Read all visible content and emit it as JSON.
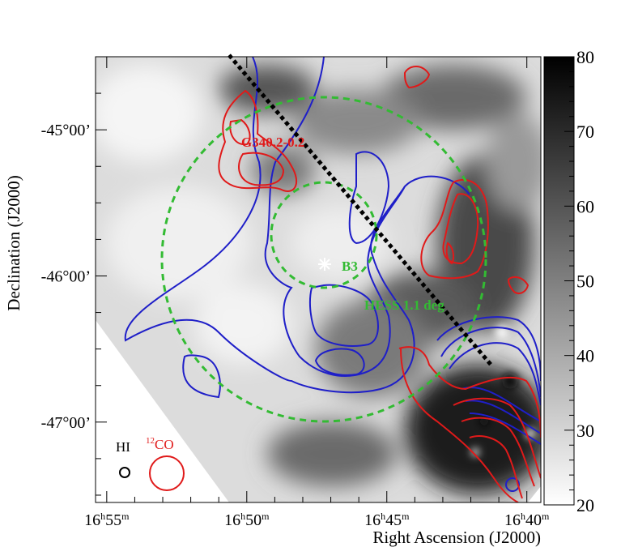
{
  "chart_data": {
    "type": "heatmap",
    "title": "",
    "xlabel": "Right Ascension (J2000)",
    "ylabel": "Declination (J2000)",
    "x_ticks": [
      {
        "h": "16",
        "m": "55",
        "ra_min": 0
      },
      {
        "h": "16",
        "m": "50",
        "ra_min": 5
      },
      {
        "h": "16",
        "m": "45",
        "ra_min": 10
      },
      {
        "h": "16",
        "m": "40",
        "ra_min": 15
      }
    ],
    "x_range_minutes_from_16h55m": [
      -0.4,
      15.5
    ],
    "y_ticks": [
      {
        "label": "-45°00’",
        "dec": -45.0
      },
      {
        "label": "-46°00’",
        "dec": -46.0
      },
      {
        "label": "-47°00’",
        "dec": -47.0
      }
    ],
    "y_range_deg": [
      -47.55,
      -44.5
    ],
    "colorbar": {
      "min": 20,
      "max": 80,
      "ticks": [
        20,
        30,
        40,
        50,
        60,
        70,
        80
      ],
      "colormap": "grayscale (white = low, black = high)"
    },
    "annotations": {
      "snr_label": "G340.2-0.2",
      "star_label": "B3",
      "circle_label": "HESS 1.1 deg",
      "beam_hi_label": "HI",
      "beam_co_sup": "12",
      "beam_co_text": "CO"
    },
    "series": [
      {
        "name": "HI",
        "kind": "contours",
        "color": "#1f1fc8"
      },
      {
        "name": "12CO",
        "kind": "contours",
        "color": "#e01a1a"
      }
    ],
    "colors": {
      "hi": "#1f1fc8",
      "co": "#e01a1a",
      "hess": "#33bb33",
      "line": "#000000"
    }
  }
}
